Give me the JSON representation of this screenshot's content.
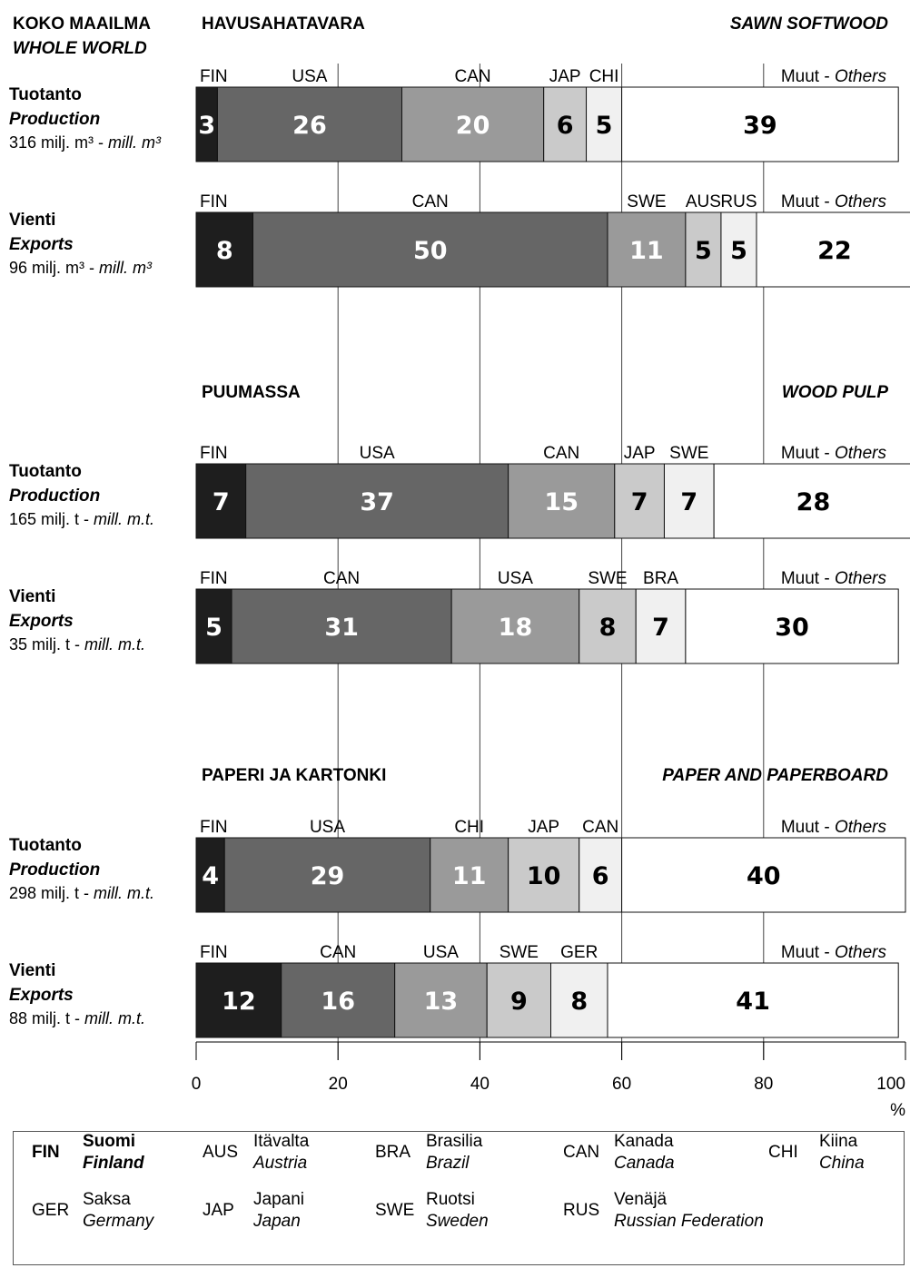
{
  "header": {
    "scope_fi": "KOKO MAAILMA",
    "scope_en": "WHOLE WORLD"
  },
  "chart_data": {
    "type": "bar",
    "orientation": "horizontal",
    "stacked": true,
    "xlim": [
      0,
      100
    ],
    "x_ticks": [
      "0",
      "20",
      "40",
      "60",
      "80",
      "100"
    ],
    "x_unit": "%",
    "grid": true,
    "colors": [
      "#1e1e1e",
      "#666666",
      "#9a9a9a",
      "#cacaca",
      "#f0f0f0",
      "#ffffff"
    ],
    "sections": [
      {
        "title_fi": "HAVUSAHATAVARA",
        "title_en": "SAWN SOFTWOOD",
        "rows": [
          {
            "label_fi": "Tuotanto",
            "label_en": "Production",
            "total_fi": "316 milj. m³ - ",
            "total_en": "mill. m³",
            "segments": [
              {
                "country": "FIN",
                "value": 3
              },
              {
                "country": "USA",
                "value": 26
              },
              {
                "country": "CAN",
                "value": 20
              },
              {
                "country": "JAP",
                "value": 6
              },
              {
                "country": "CHI",
                "value": 5
              },
              {
                "country": "Muut - ",
                "country_en": "Others",
                "value": 39
              }
            ]
          },
          {
            "label_fi": "Vienti",
            "label_en": "Exports",
            "total_fi": "96 milj. m³ - ",
            "total_en": "mill. m³",
            "segments": [
              {
                "country": "FIN",
                "value": 8
              },
              {
                "country": "CAN",
                "value": 50
              },
              {
                "country": "SWE",
                "value": 11
              },
              {
                "country": "AUS",
                "value": 5
              },
              {
                "country": "RUS",
                "value": 5
              },
              {
                "country": "Muut - ",
                "country_en": "Others",
                "value": 22
              }
            ]
          }
        ]
      },
      {
        "title_fi": "PUUMASSA",
        "title_en": "WOOD PULP",
        "rows": [
          {
            "label_fi": "Tuotanto",
            "label_en": "Production",
            "total_fi": "165 milj. t - ",
            "total_en": "mill. m.t.",
            "segments": [
              {
                "country": "FIN",
                "value": 7
              },
              {
                "country": "USA",
                "value": 37
              },
              {
                "country": "CAN",
                "value": 15
              },
              {
                "country": "JAP",
                "value": 7
              },
              {
                "country": "SWE",
                "value": 7
              },
              {
                "country": "Muut - ",
                "country_en": "Others",
                "value": 28
              }
            ]
          },
          {
            "label_fi": "Vienti",
            "label_en": "Exports",
            "total_fi": "35 milj. t - ",
            "total_en": "mill. m.t.",
            "segments": [
              {
                "country": "FIN",
                "value": 5
              },
              {
                "country": "CAN",
                "value": 31
              },
              {
                "country": "USA",
                "value": 18
              },
              {
                "country": "SWE",
                "value": 8
              },
              {
                "country": "BRA",
                "value": 7
              },
              {
                "country": "Muut - ",
                "country_en": "Others",
                "value": 30
              }
            ]
          }
        ]
      },
      {
        "title_fi": "PAPERI JA KARTONKI",
        "title_en": "PAPER AND PAPERBOARD",
        "rows": [
          {
            "label_fi": "Tuotanto",
            "label_en": "Production",
            "total_fi": "298 milj. t - ",
            "total_en": "mill. m.t.",
            "segments": [
              {
                "country": "FIN",
                "value": 4
              },
              {
                "country": "USA",
                "value": 29
              },
              {
                "country": "CHI",
                "value": 11
              },
              {
                "country": "JAP",
                "value": 10
              },
              {
                "country": "CAN",
                "value": 6
              },
              {
                "country": "Muut - ",
                "country_en": "Others",
                "value": 40
              }
            ]
          },
          {
            "label_fi": "Vienti",
            "label_en": "Exports",
            "total_fi": "88 milj. t - ",
            "total_en": "mill. m.t.",
            "segments": [
              {
                "country": "FIN",
                "value": 12
              },
              {
                "country": "CAN",
                "value": 16
              },
              {
                "country": "USA",
                "value": 13
              },
              {
                "country": "SWE",
                "value": 9
              },
              {
                "country": "GER",
                "value": 8
              },
              {
                "country": "Muut - ",
                "country_en": "Others",
                "value": 41
              }
            ]
          }
        ]
      }
    ]
  },
  "legend": [
    {
      "code": "FIN",
      "fi": "Suomi",
      "en": "Finland",
      "bold": true
    },
    {
      "code": "AUS",
      "fi": "Itävalta",
      "en": "Austria"
    },
    {
      "code": "BRA",
      "fi": "Brasilia",
      "en": "Brazil"
    },
    {
      "code": "CAN",
      "fi": "Kanada",
      "en": "Canada"
    },
    {
      "code": "CHI",
      "fi": "Kiina",
      "en": "China"
    },
    {
      "code": "GER",
      "fi": "Saksa",
      "en": "Germany"
    },
    {
      "code": "JAP",
      "fi": "Japani",
      "en": "Japan"
    },
    {
      "code": "SWE",
      "fi": "Ruotsi",
      "en": "Sweden"
    },
    {
      "code": "RUS",
      "fi": "Venäjä",
      "en": "Russian Federation"
    }
  ]
}
